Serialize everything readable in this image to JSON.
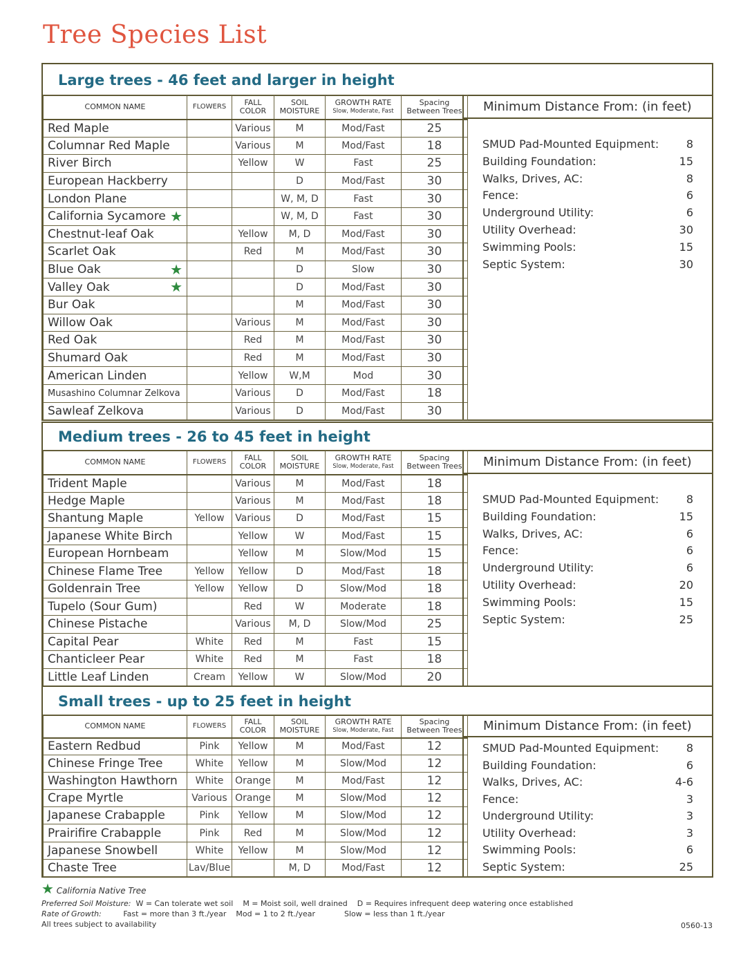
{
  "title": "Tree Species List",
  "columns": {
    "name": "COMMON NAME",
    "flowers": "FLOWERS",
    "fall_color": "FALL COLOR",
    "soil": "SOIL MOISTURE",
    "growth": "GROWTH RATE",
    "growth_sub": "Slow, Moderate, Fast",
    "spacing": "Spacing Between Trees"
  },
  "distance_heading": "Minimum Distance From: (in feet)",
  "star_color": "#2e8b3e",
  "sections": [
    {
      "heading": "Large trees - 46 feet and larger in height",
      "rows": [
        [
          "Red Maple",
          "",
          "Various",
          "M",
          "Mod/Fast",
          "25",
          false
        ],
        [
          "Columnar Red Maple",
          "",
          "Various",
          "M",
          "Mod/Fast",
          "18",
          false
        ],
        [
          "River Birch",
          "",
          "Yellow",
          "W",
          "Fast",
          "25",
          false
        ],
        [
          "European Hackberry",
          "",
          "",
          "D",
          "Mod/Fast",
          "30",
          false
        ],
        [
          "London Plane",
          "",
          "",
          "W, M, D",
          "Fast",
          "30",
          false
        ],
        [
          "California Sycamore",
          "",
          "",
          "W, M, D",
          "Fast",
          "30",
          true
        ],
        [
          "Chestnut-leaf Oak",
          "",
          "Yellow",
          "M, D",
          "Mod/Fast",
          "30",
          false
        ],
        [
          "Scarlet Oak",
          "",
          "Red",
          "M",
          "Mod/Fast",
          "30",
          false
        ],
        [
          "Blue Oak",
          "",
          "",
          "D",
          "Slow",
          "30",
          true
        ],
        [
          "Valley Oak",
          "",
          "",
          "D",
          "Mod/Fast",
          "30",
          true
        ],
        [
          "Bur Oak",
          "",
          "",
          "M",
          "Mod/Fast",
          "30",
          false
        ],
        [
          "Willow Oak",
          "",
          "Various",
          "M",
          "Mod/Fast",
          "30",
          false
        ],
        [
          "Red Oak",
          "",
          "Red",
          "M",
          "Mod/Fast",
          "30",
          false
        ],
        [
          "Shumard Oak",
          "",
          "Red",
          "M",
          "Mod/Fast",
          "30",
          false
        ],
        [
          "American Linden",
          "",
          "Yellow",
          "W,M",
          "Mod",
          "30",
          false
        ],
        [
          "Musashino Columnar Zelkova",
          "",
          "Various",
          "D",
          "Mod/Fast",
          "18",
          false
        ],
        [
          "Sawleaf Zelkova",
          "",
          "Various",
          "D",
          "Mod/Fast",
          "30",
          false
        ]
      ],
      "distances": [
        [
          "SMUD Pad-Mounted Equipment:",
          "8"
        ],
        [
          "Building Foundation:",
          "15"
        ],
        [
          "Walks, Drives, AC:",
          "8"
        ],
        [
          "Fence:",
          "6"
        ],
        [
          "Underground Utility:",
          "6"
        ],
        [
          "Utility Overhead:",
          "30"
        ],
        [
          "Swimming Pools:",
          "15"
        ],
        [
          "Septic System:",
          "30"
        ]
      ]
    },
    {
      "heading": "Medium trees - 26 to 45 feet in height",
      "rows": [
        [
          "Trident Maple",
          "",
          "Various",
          "M",
          "Mod/Fast",
          "18",
          false
        ],
        [
          "Hedge Maple",
          "",
          "Various",
          "M",
          "Mod/Fast",
          "18",
          false
        ],
        [
          "Shantung Maple",
          "Yellow",
          "Various",
          "D",
          "Mod/Fast",
          "15",
          false
        ],
        [
          "Japanese White Birch",
          "",
          "Yellow",
          "W",
          "Mod/Fast",
          "15",
          false
        ],
        [
          "European Hornbeam",
          "",
          "Yellow",
          "M",
          "Slow/Mod",
          "15",
          false
        ],
        [
          "Chinese Flame Tree",
          "Yellow",
          "Yellow",
          "D",
          "Mod/Fast",
          "18",
          false
        ],
        [
          "Goldenrain Tree",
          "Yellow",
          "Yellow",
          "D",
          "Slow/Mod",
          "18",
          false
        ],
        [
          "Tupelo (Sour Gum)",
          "",
          "Red",
          "W",
          "Moderate",
          "18",
          false
        ],
        [
          "Chinese Pistache",
          "",
          "Various",
          "M, D",
          "Slow/Mod",
          "25",
          false
        ],
        [
          "Capital Pear",
          "White",
          "Red",
          "M",
          "Fast",
          "15",
          false
        ],
        [
          "Chanticleer Pear",
          "White",
          "Red",
          "M",
          "Fast",
          "18",
          false
        ],
        [
          "Little Leaf Linden",
          "Cream",
          "Yellow",
          "W",
          "Slow/Mod",
          "20",
          false
        ]
      ],
      "distances": [
        [
          "SMUD Pad-Mounted Equipment:",
          "8"
        ],
        [
          "Building Foundation:",
          "15"
        ],
        [
          "Walks, Drives, AC:",
          "6"
        ],
        [
          "Fence:",
          "6"
        ],
        [
          "Underground Utility:",
          "6"
        ],
        [
          "Utility Overhead:",
          "20"
        ],
        [
          "Swimming Pools:",
          "15"
        ],
        [
          "Septic System:",
          "25"
        ]
      ]
    },
    {
      "heading": "Small trees - up to 25 feet in height",
      "rows": [
        [
          "Eastern Redbud",
          "Pink",
          "Yellow",
          "M",
          "Mod/Fast",
          "12",
          false
        ],
        [
          "Chinese Fringe Tree",
          "White",
          "Yellow",
          "M",
          "Slow/Mod",
          "12",
          false
        ],
        [
          "Washington Hawthorn",
          "White",
          "Orange",
          "M",
          "Mod/Fast",
          "12",
          false
        ],
        [
          "Crape Myrtle",
          "Various",
          "Orange",
          "M",
          "Slow/Mod",
          "12",
          false
        ],
        [
          "Japanese Crabapple",
          "Pink",
          "Yellow",
          "M",
          "Slow/Mod",
          "12",
          false
        ],
        [
          "Prairifire Crabapple",
          "Pink",
          "Red",
          "M",
          "Slow/Mod",
          "12",
          false
        ],
        [
          "Japanese Snowbell",
          "White",
          "Yellow",
          "M",
          "Slow/Mod",
          "12",
          false
        ],
        [
          "Chaste Tree",
          "Lav/Blue",
          "",
          "M, D",
          "Mod/Fast",
          "12",
          false
        ]
      ],
      "distances": [
        [
          "SMUD Pad-Mounted Equipment:",
          "8"
        ],
        [
          "Building Foundation:",
          "6"
        ],
        [
          "Walks, Drives, AC:",
          "4-6"
        ],
        [
          "Fence:",
          "3"
        ],
        [
          "Underground Utility:",
          "3"
        ],
        [
          "Utility Overhead:",
          "3"
        ],
        [
          "Swimming Pools:",
          "6"
        ],
        [
          "Septic System:",
          "25"
        ]
      ]
    }
  ],
  "footer": {
    "legend": "California Native Tree",
    "soil_label": "Preferred Soil Moisture:",
    "soil_w": "W = Can tolerate wet soil",
    "soil_m": "M = Moist soil, well drained",
    "soil_d": "D = Requires infrequent deep watering once established",
    "growth_label": "Rate of Growth:",
    "growth_fast": "Fast = more than 3 ft./year",
    "growth_mod": "Mod = 1 to 2 ft./year",
    "growth_slow": "Slow = less than 1 ft./year",
    "availability": "All trees subject to availability",
    "code": "0560-13"
  }
}
